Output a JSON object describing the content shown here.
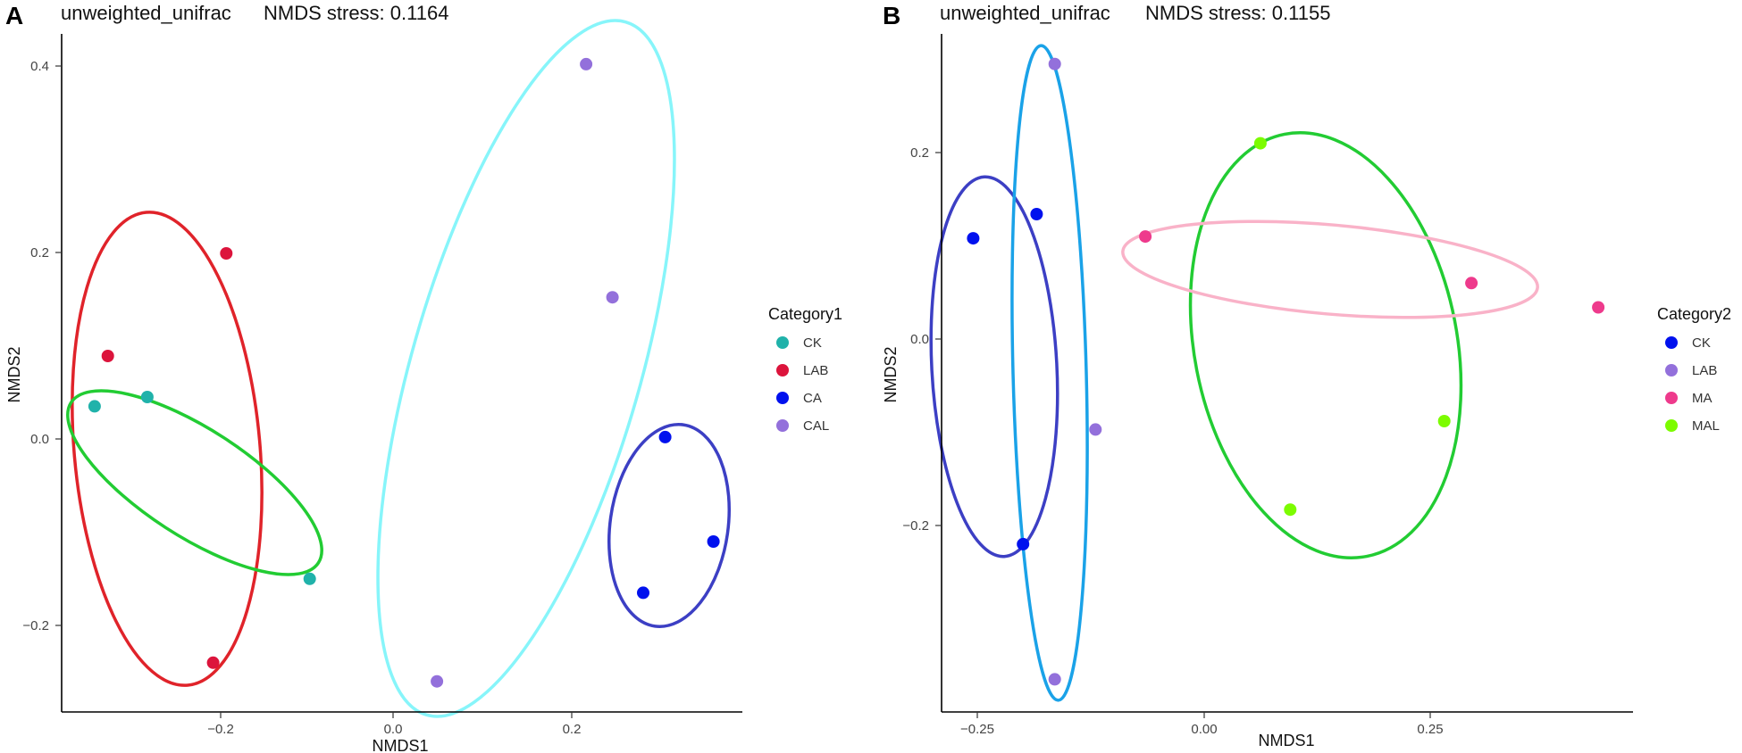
{
  "chart_data": [
    {
      "type": "scatter",
      "panel": "A",
      "title": "unweighted_unifrac",
      "subtitle": "NMDS stress: 0.1164",
      "xlabel": "NMDS1",
      "ylabel": "NMDS2",
      "xlim": [
        -0.37,
        0.4
      ],
      "ylim": [
        -0.29,
        0.43
      ],
      "xticks": [
        -0.2,
        0.0,
        0.2
      ],
      "yticks": [
        -0.2,
        0.0,
        0.2,
        0.4
      ],
      "xtick_labels": [
        "−0.2",
        "0.0",
        "0.2"
      ],
      "ytick_labels": [
        "−0.2",
        "0.0",
        "0.2",
        "0.4"
      ],
      "grid": false,
      "legend": {
        "title": "Category1",
        "position": "right"
      },
      "series": [
        {
          "name": "CK",
          "color": "#20B2AA",
          "ellipse_color": "#22CC33",
          "points": [
            [
              -0.34,
              0.035
            ],
            [
              -0.28,
              0.045
            ],
            [
              -0.095,
              -0.15
            ]
          ]
        },
        {
          "name": "LAB",
          "color": "#DC143C",
          "ellipse_color": "#E0232A",
          "points": [
            [
              -0.325,
              0.089
            ],
            [
              -0.19,
              0.199
            ],
            [
              -0.205,
              -0.24
            ]
          ]
        },
        {
          "name": "CA",
          "color": "#0011EE",
          "ellipse_color": "#3C3FC4",
          "points": [
            [
              0.31,
              0.002
            ],
            [
              0.365,
              -0.11
            ],
            [
              0.285,
              -0.165
            ]
          ]
        },
        {
          "name": "CAL",
          "color": "#9370DB",
          "ellipse_color": "#87F5FA",
          "points": [
            [
              0.22,
              0.402
            ],
            [
              0.25,
              0.152
            ],
            [
              0.05,
              -0.26
            ]
          ]
        }
      ]
    },
    {
      "type": "scatter",
      "panel": "B",
      "title": "unweighted_unifrac",
      "subtitle": "NMDS stress: 0.1155",
      "xlabel": "NMDS1",
      "ylabel": "NMDS2",
      "xlim": [
        -0.29,
        0.47
      ],
      "ylim": [
        -0.4,
        0.32
      ],
      "xticks": [
        -0.25,
        0.0,
        0.25
      ],
      "yticks": [
        -0.2,
        0.0,
        0.2
      ],
      "xtick_labels": [
        "−0.25",
        "0.00",
        "0.25"
      ],
      "ytick_labels": [
        "−0.2",
        "0.0",
        "0.2"
      ],
      "grid": false,
      "legend": {
        "title": "Category2",
        "position": "right"
      },
      "series": [
        {
          "name": "CK",
          "color": "#0011EE",
          "ellipse_color": "#3C3FC4",
          "points": [
            [
              -0.255,
              0.108
            ],
            [
              -0.185,
              0.134
            ],
            [
              -0.2,
              -0.22
            ]
          ]
        },
        {
          "name": "LAB",
          "color": "#9370DB",
          "ellipse_color": "#1AA2E8",
          "points": [
            [
              -0.165,
              0.295
            ],
            [
              -0.12,
              -0.097
            ],
            [
              -0.165,
              -0.365
            ]
          ]
        },
        {
          "name": "MA",
          "color": "#EE3A8C",
          "ellipse_color": "#F9B2C8",
          "points": [
            [
              -0.065,
              0.11
            ],
            [
              0.295,
              0.06
            ],
            [
              0.435,
              0.034
            ]
          ]
        },
        {
          "name": "MAL",
          "color": "#7CFC00",
          "ellipse_color": "#22CC33",
          "points": [
            [
              0.062,
              0.21
            ],
            [
              0.265,
              -0.088
            ],
            [
              0.095,
              -0.183
            ]
          ]
        }
      ]
    }
  ]
}
